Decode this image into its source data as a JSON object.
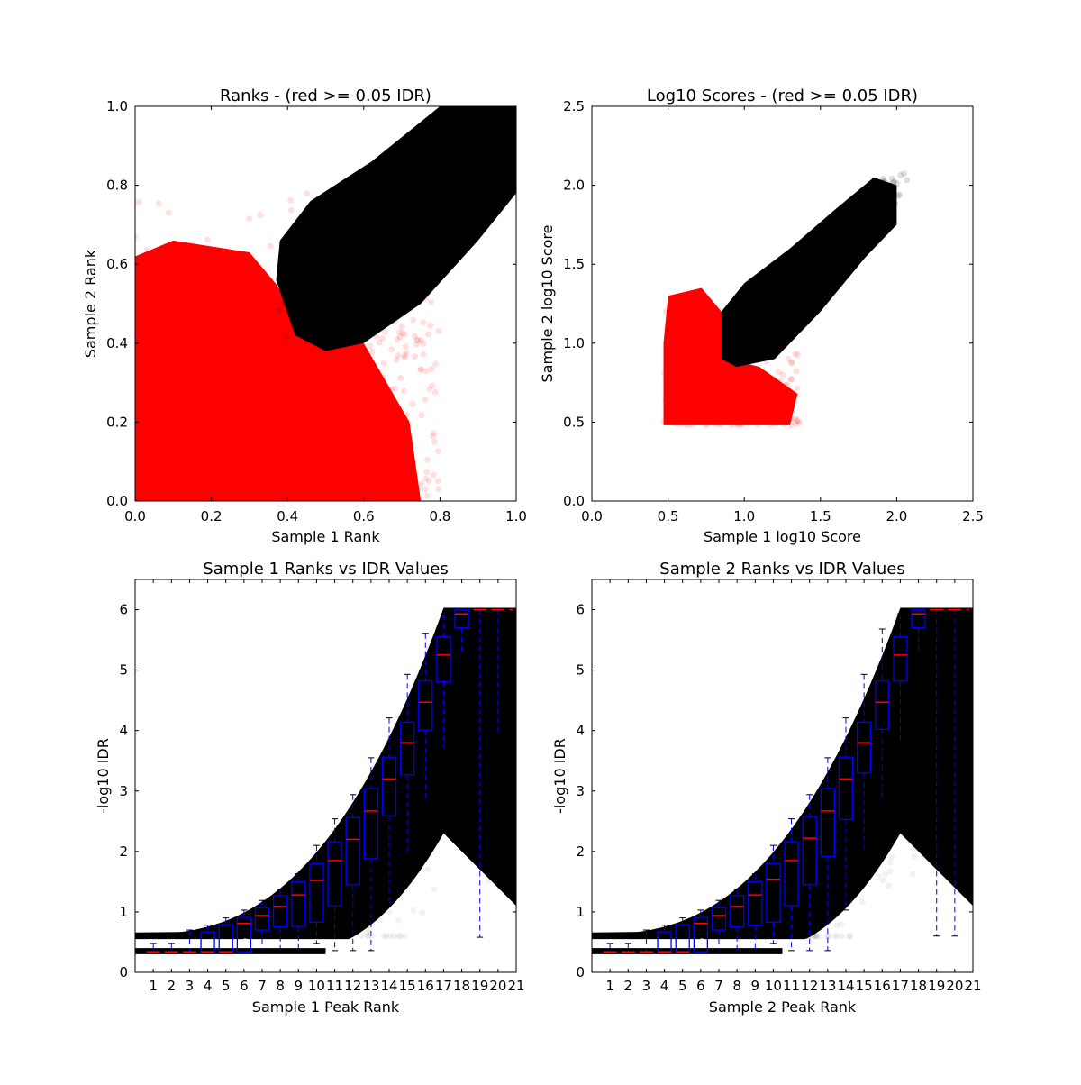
{
  "chart_data": [
    {
      "type": "scatter",
      "title": "Ranks - (red >= 0.05 IDR)",
      "xlabel": "Sample 1 Rank",
      "ylabel": "Sample 2 Rank",
      "xlim": [
        0,
        1.0
      ],
      "ylim": [
        0,
        1.0
      ],
      "xticks": [
        "0.0",
        "0.2",
        "0.4",
        "0.6",
        "0.8",
        "1.0"
      ],
      "yticks": [
        "0.0",
        "0.2",
        "0.4",
        "0.6",
        "0.8",
        "1.0"
      ],
      "series_colors": {
        "pass": "#000000",
        "fail": "#ff0000"
      },
      "grid": false
    },
    {
      "type": "scatter",
      "title": "Log10 Scores - (red >= 0.05 IDR)",
      "xlabel": "Sample 1 log10 Score",
      "ylabel": "Sample 2 log10 Score",
      "xlim": [
        0,
        2.5
      ],
      "ylim": [
        0,
        2.5
      ],
      "xticks": [
        "0.0",
        "0.5",
        "1.0",
        "1.5",
        "2.0",
        "2.5"
      ],
      "yticks": [
        "0.0",
        "0.5",
        "1.0",
        "1.5",
        "2.0",
        "2.5"
      ],
      "series_colors": {
        "pass": "#000000",
        "fail": "#ff0000"
      },
      "grid": false
    },
    {
      "type": "box",
      "title": "Sample 1 Ranks vs IDR Values",
      "xlabel": "Sample 1 Peak Rank",
      "ylabel": "-log10 IDR",
      "ylim": [
        0,
        6.5
      ],
      "yticks": [
        "0",
        "1",
        "2",
        "3",
        "4",
        "5",
        "6"
      ],
      "categories": [
        "1",
        "2",
        "3",
        "4",
        "5",
        "6",
        "7",
        "8",
        "9",
        "10",
        "11",
        "12",
        "13",
        "14",
        "15",
        "16",
        "17",
        "18",
        "19",
        "20",
        "21"
      ],
      "box_color": "#0000ff",
      "median_color": "#ff0000",
      "boxes": [
        [
          0.34,
          0.34,
          0.34,
          0.34,
          0.48
        ],
        [
          0.34,
          0.34,
          0.34,
          0.34,
          0.48
        ],
        [
          0.34,
          0.34,
          0.34,
          0.34,
          0.7
        ],
        [
          0.34,
          0.34,
          0.34,
          0.67,
          0.78
        ],
        [
          0.34,
          0.34,
          0.34,
          0.79,
          0.9
        ],
        [
          0.34,
          0.34,
          0.81,
          0.91,
          1.03
        ],
        [
          0.36,
          0.7,
          0.94,
          1.07,
          1.19
        ],
        [
          0.36,
          0.75,
          1.09,
          1.27,
          1.37
        ],
        [
          0.36,
          0.76,
          1.28,
          1.5,
          1.63
        ],
        [
          0.48,
          0.83,
          1.52,
          1.8,
          2.1
        ],
        [
          0.36,
          1.1,
          1.85,
          2.16,
          2.54
        ],
        [
          0.36,
          1.45,
          2.2,
          2.56,
          2.94
        ],
        [
          0.36,
          1.88,
          2.67,
          3.04,
          3.55
        ],
        [
          1.13,
          2.59,
          3.2,
          3.56,
          4.21
        ],
        [
          1.97,
          3.27,
          3.8,
          4.14,
          4.93
        ],
        [
          2.82,
          4.01,
          4.47,
          4.82,
          5.61
        ],
        [
          3.7,
          4.81,
          5.25,
          5.55,
          5.93
        ],
        [
          5.25,
          5.7,
          5.93,
          6.0,
          6.0
        ],
        [
          0.58,
          6.0,
          6.0,
          6.0,
          6.0
        ],
        [
          3.96,
          6.0,
          6.0,
          6.0,
          6.0
        ],
        [
          6.0,
          6.0,
          6.0,
          6.0,
          6.0
        ]
      ]
    },
    {
      "type": "box",
      "title": "Sample 2 Ranks vs IDR Values",
      "xlabel": "Sample 2 Peak Rank",
      "ylabel": "-log10 IDR",
      "ylim": [
        0,
        6.5
      ],
      "yticks": [
        "0",
        "1",
        "2",
        "3",
        "4",
        "5",
        "6"
      ],
      "categories": [
        "1",
        "2",
        "3",
        "4",
        "5",
        "6",
        "7",
        "8",
        "9",
        "10",
        "11",
        "12",
        "13",
        "14",
        "15",
        "16",
        "17",
        "18",
        "19",
        "20",
        "21"
      ],
      "box_color": "#0000ff",
      "median_color": "#ff0000",
      "boxes": [
        [
          0.34,
          0.34,
          0.34,
          0.34,
          0.48
        ],
        [
          0.34,
          0.34,
          0.34,
          0.34,
          0.48
        ],
        [
          0.34,
          0.34,
          0.34,
          0.34,
          0.7
        ],
        [
          0.34,
          0.34,
          0.34,
          0.67,
          0.78
        ],
        [
          0.34,
          0.34,
          0.34,
          0.79,
          0.9
        ],
        [
          0.34,
          0.34,
          0.81,
          0.91,
          1.03
        ],
        [
          0.36,
          0.7,
          0.94,
          1.07,
          1.19
        ],
        [
          0.36,
          0.75,
          1.09,
          1.27,
          1.37
        ],
        [
          0.36,
          0.78,
          1.28,
          1.5,
          1.63
        ],
        [
          0.48,
          0.83,
          1.54,
          1.8,
          2.1
        ],
        [
          0.36,
          1.1,
          1.85,
          2.16,
          2.54
        ],
        [
          0.36,
          1.45,
          2.22,
          2.58,
          2.94
        ],
        [
          0.36,
          1.92,
          2.67,
          3.04,
          3.55
        ],
        [
          1.03,
          2.53,
          3.2,
          3.56,
          4.21
        ],
        [
          2.02,
          3.3,
          3.8,
          4.14,
          4.93
        ],
        [
          2.8,
          4.02,
          4.47,
          4.82,
          5.68
        ],
        [
          3.78,
          4.82,
          5.25,
          5.55,
          5.93
        ],
        [
          5.25,
          5.7,
          5.93,
          6.0,
          6.0
        ],
        [
          0.6,
          6.0,
          6.0,
          6.0,
          6.0
        ],
        [
          0.6,
          6.0,
          6.0,
          6.0,
          6.0
        ],
        [
          6.0,
          6.0,
          6.0,
          6.0,
          6.0
        ]
      ]
    }
  ]
}
